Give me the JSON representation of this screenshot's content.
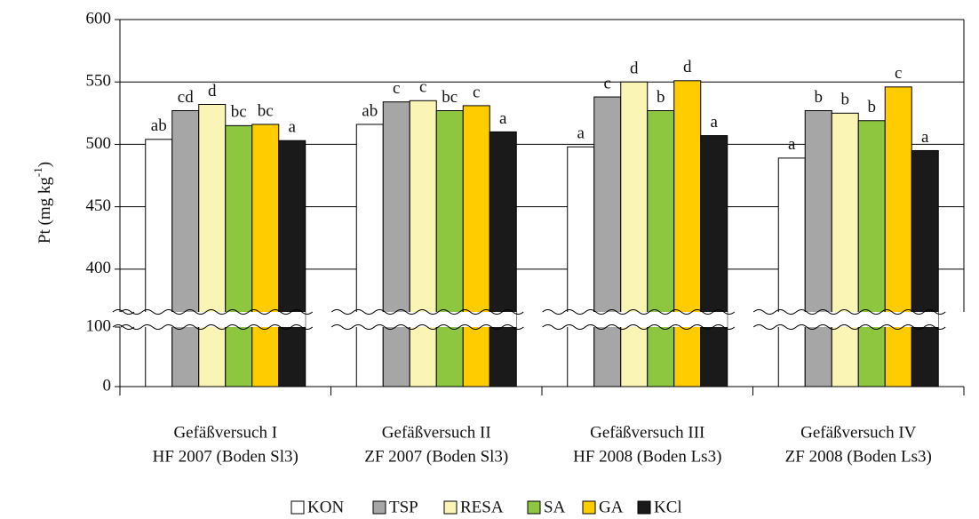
{
  "chart_data": {
    "type": "bar",
    "y_label": [
      "Pt (mg kg",
      "-1",
      ")"
    ],
    "categories": [
      [
        "Gefäßversuch I",
        "HF 2007 (Boden Sl3)"
      ],
      [
        "Gefäßversuch II",
        "ZF 2007 (Boden Sl3)"
      ],
      [
        "Gefäßversuch III",
        "HF 2008 (Boden Ls3)"
      ],
      [
        "Gefäßversuch IV",
        "ZF 2008 (Boden Ls3)"
      ]
    ],
    "series": [
      {
        "name": "KON",
        "color": "#ffffff",
        "values": [
          504,
          516,
          498,
          489
        ],
        "value_labels": [
          "ab",
          "ab",
          "a",
          "a"
        ]
      },
      {
        "name": "TSP",
        "color": "#a6a6a6",
        "values": [
          527,
          534,
          538,
          527
        ],
        "value_labels": [
          "cd",
          "c",
          "c",
          "b"
        ]
      },
      {
        "name": "RESA",
        "color": "#fbf5b5",
        "values": [
          532,
          535,
          550,
          525
        ],
        "value_labels": [
          "d",
          "c",
          "d",
          "b"
        ]
      },
      {
        "name": "SA",
        "color": "#8dc63f",
        "values": [
          515,
          527,
          527,
          519
        ],
        "value_labels": [
          "bc",
          "bc",
          "b",
          "b"
        ]
      },
      {
        "name": "GA",
        "color": "#ffcc00",
        "values": [
          516,
          531,
          551,
          546
        ],
        "value_labels": [
          "bc",
          "c",
          "d",
          "c"
        ]
      },
      {
        "name": "KCl",
        "color": "#1a1a1a",
        "values": [
          503,
          510,
          507,
          495
        ],
        "value_labels": [
          "a",
          "a",
          "a",
          "a"
        ]
      }
    ],
    "ylim": [
      0,
      600
    ],
    "ybreak": [
      100,
      370
    ],
    "yticks": [
      0,
      100,
      400,
      450,
      500,
      550,
      600
    ],
    "grid": true
  }
}
